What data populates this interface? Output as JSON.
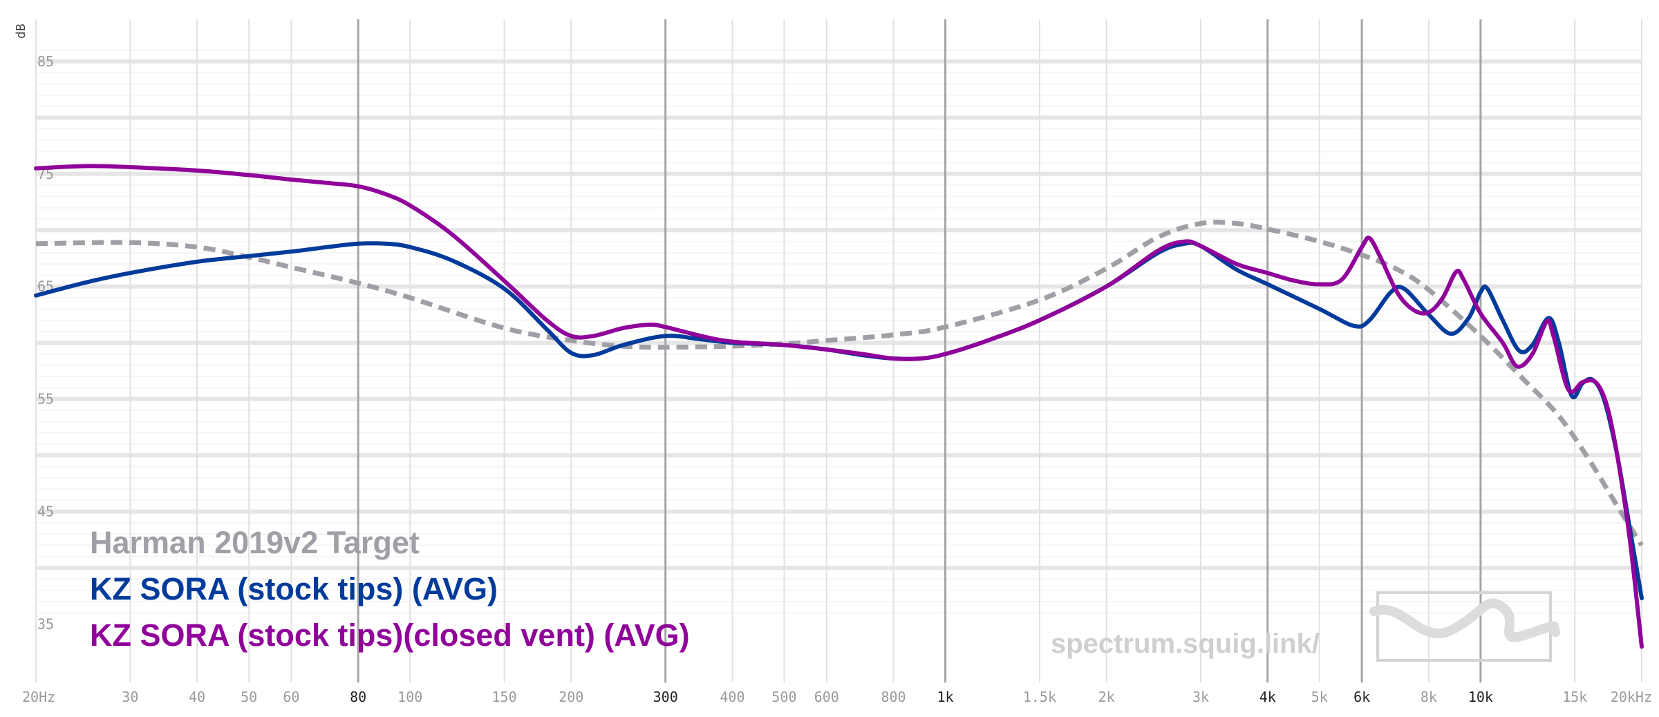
{
  "chart_data": {
    "type": "line",
    "ylabel": "dB",
    "xlabel": "",
    "x_scale": "log",
    "xlim": [
      20,
      20000
    ],
    "ylim": [
      30,
      88
    ],
    "y_ticks": [
      85,
      75,
      65,
      55,
      45,
      35
    ],
    "x_ticks": [
      {
        "value": 20,
        "label": "20Hz",
        "major": false
      },
      {
        "value": 30,
        "label": "30",
        "major": false
      },
      {
        "value": 40,
        "label": "40",
        "major": false
      },
      {
        "value": 50,
        "label": "50",
        "major": false
      },
      {
        "value": 60,
        "label": "60",
        "major": false
      },
      {
        "value": 80,
        "label": "80",
        "major": true
      },
      {
        "value": 100,
        "label": "100",
        "major": false
      },
      {
        "value": 150,
        "label": "150",
        "major": false
      },
      {
        "value": 200,
        "label": "200",
        "major": false
      },
      {
        "value": 300,
        "label": "300",
        "major": true
      },
      {
        "value": 400,
        "label": "400",
        "major": false
      },
      {
        "value": 500,
        "label": "500",
        "major": false
      },
      {
        "value": 600,
        "label": "600",
        "major": false
      },
      {
        "value": 800,
        "label": "800",
        "major": false
      },
      {
        "value": 1000,
        "label": "1k",
        "major": true
      },
      {
        "value": 1500,
        "label": "1.5k",
        "major": false
      },
      {
        "value": 2000,
        "label": "2k",
        "major": false
      },
      {
        "value": 3000,
        "label": "3k",
        "major": false
      },
      {
        "value": 4000,
        "label": "4k",
        "major": true
      },
      {
        "value": 5000,
        "label": "5k",
        "major": false
      },
      {
        "value": 6000,
        "label": "6k",
        "major": true
      },
      {
        "value": 8000,
        "label": "8k",
        "major": false
      },
      {
        "value": 10000,
        "label": "10k",
        "major": true
      },
      {
        "value": 15000,
        "label": "15k",
        "major": false
      },
      {
        "value": 20000,
        "label": "20kHz",
        "major": false
      }
    ],
    "grid": true,
    "legend_position": "bottom-left",
    "series": [
      {
        "name": "Harman 2019v2 Target",
        "color": "#a09fa6",
        "dashed": true,
        "points": [
          [
            20,
            68.8
          ],
          [
            30,
            68.9
          ],
          [
            40,
            68.5
          ],
          [
            50,
            67.6
          ],
          [
            60,
            66.7
          ],
          [
            80,
            65.3
          ],
          [
            100,
            64.0
          ],
          [
            150,
            61.3
          ],
          [
            200,
            60.2
          ],
          [
            250,
            59.7
          ],
          [
            300,
            59.6
          ],
          [
            400,
            59.7
          ],
          [
            500,
            59.9
          ],
          [
            600,
            60.2
          ],
          [
            800,
            60.7
          ],
          [
            1000,
            61.4
          ],
          [
            1500,
            63.8
          ],
          [
            2000,
            66.6
          ],
          [
            2500,
            69.4
          ],
          [
            3000,
            70.6
          ],
          [
            3500,
            70.6
          ],
          [
            4000,
            70.1
          ],
          [
            5000,
            69.0
          ],
          [
            6000,
            67.8
          ],
          [
            7000,
            66.5
          ],
          [
            8000,
            64.7
          ],
          [
            10000,
            60.6
          ],
          [
            12000,
            56.8
          ],
          [
            14000,
            53.5
          ],
          [
            16000,
            49.5
          ],
          [
            18000,
            45.5
          ],
          [
            20000,
            42.0
          ]
        ]
      },
      {
        "name": "KZ SORA (stock tips) (AVG)",
        "color": "#003b9c",
        "dashed": false,
        "points": [
          [
            20,
            64.2
          ],
          [
            25,
            65.4
          ],
          [
            30,
            66.2
          ],
          [
            40,
            67.2
          ],
          [
            50,
            67.7
          ],
          [
            60,
            68.1
          ],
          [
            70,
            68.5
          ],
          [
            80,
            68.8
          ],
          [
            90,
            68.8
          ],
          [
            100,
            68.5
          ],
          [
            120,
            67.3
          ],
          [
            150,
            64.8
          ],
          [
            180,
            61.2
          ],
          [
            200,
            59.1
          ],
          [
            220,
            58.9
          ],
          [
            250,
            59.8
          ],
          [
            300,
            60.6
          ],
          [
            350,
            60.3
          ],
          [
            400,
            60.0
          ],
          [
            500,
            59.8
          ],
          [
            600,
            59.4
          ],
          [
            700,
            58.9
          ],
          [
            800,
            58.6
          ],
          [
            900,
            58.6
          ],
          [
            1000,
            59.0
          ],
          [
            1200,
            60.2
          ],
          [
            1500,
            62.0
          ],
          [
            2000,
            65.0
          ],
          [
            2500,
            68.0
          ],
          [
            2800,
            68.8
          ],
          [
            3000,
            68.6
          ],
          [
            3500,
            66.5
          ],
          [
            4000,
            65.2
          ],
          [
            5000,
            63.0
          ],
          [
            5800,
            61.5
          ],
          [
            6200,
            62.0
          ],
          [
            6800,
            64.5
          ],
          [
            7200,
            64.8
          ],
          [
            8000,
            62.5
          ],
          [
            8800,
            60.8
          ],
          [
            9500,
            62.2
          ],
          [
            10000,
            64.5
          ],
          [
            10300,
            64.8
          ],
          [
            11000,
            62.0
          ],
          [
            11800,
            59.3
          ],
          [
            12500,
            59.8
          ],
          [
            13400,
            62.2
          ],
          [
            14000,
            60.0
          ],
          [
            14800,
            55.3
          ],
          [
            15500,
            56.4
          ],
          [
            16200,
            56.7
          ],
          [
            17000,
            55.0
          ],
          [
            18000,
            50.0
          ],
          [
            19000,
            43.5
          ],
          [
            20000,
            37.3
          ]
        ]
      },
      {
        "name": "KZ SORA (stock tips)(closed vent) (AVG)",
        "color": "#90009a",
        "dashed": false,
        "points": [
          [
            20,
            75.5
          ],
          [
            25,
            75.7
          ],
          [
            30,
            75.6
          ],
          [
            40,
            75.3
          ],
          [
            50,
            74.9
          ],
          [
            60,
            74.5
          ],
          [
            70,
            74.2
          ],
          [
            80,
            73.9
          ],
          [
            90,
            73.2
          ],
          [
            100,
            72.2
          ],
          [
            120,
            69.6
          ],
          [
            150,
            65.5
          ],
          [
            180,
            62.0
          ],
          [
            200,
            60.6
          ],
          [
            220,
            60.6
          ],
          [
            250,
            61.3
          ],
          [
            280,
            61.6
          ],
          [
            300,
            61.4
          ],
          [
            350,
            60.6
          ],
          [
            400,
            60.1
          ],
          [
            500,
            59.8
          ],
          [
            600,
            59.4
          ],
          [
            700,
            59.0
          ],
          [
            800,
            58.6
          ],
          [
            900,
            58.6
          ],
          [
            1000,
            59.0
          ],
          [
            1200,
            60.2
          ],
          [
            1500,
            62.0
          ],
          [
            2000,
            65.0
          ],
          [
            2500,
            68.2
          ],
          [
            2800,
            69.0
          ],
          [
            3000,
            68.6
          ],
          [
            3500,
            67.0
          ],
          [
            4000,
            66.2
          ],
          [
            4500,
            65.5
          ],
          [
            5000,
            65.2
          ],
          [
            5500,
            65.6
          ],
          [
            6000,
            68.5
          ],
          [
            6200,
            69.3
          ],
          [
            6500,
            67.6
          ],
          [
            7000,
            64.4
          ],
          [
            7500,
            62.9
          ],
          [
            8000,
            62.7
          ],
          [
            8500,
            64.0
          ],
          [
            9000,
            66.3
          ],
          [
            9300,
            65.6
          ],
          [
            10000,
            62.6
          ],
          [
            11000,
            60.0
          ],
          [
            11700,
            57.9
          ],
          [
            12500,
            59.0
          ],
          [
            13300,
            61.9
          ],
          [
            13700,
            60.5
          ],
          [
            14600,
            55.8
          ],
          [
            15500,
            56.5
          ],
          [
            16400,
            56.5
          ],
          [
            17200,
            54.5
          ],
          [
            18000,
            50.0
          ],
          [
            19000,
            42.5
          ],
          [
            20000,
            33.0
          ]
        ]
      }
    ],
    "watermark": "spectrum.squig.link/"
  },
  "legend": {
    "target_label": "Harman 2019v2 Target",
    "series1_label": "KZ SORA (stock tips) (AVG)",
    "series2_label": "KZ SORA (stock tips)(closed vent) (AVG)"
  },
  "axis": {
    "y_unit": "dB"
  },
  "watermark_text": "spectrum.squig.link/",
  "watermark_logo": "squiggle-logo-icon"
}
